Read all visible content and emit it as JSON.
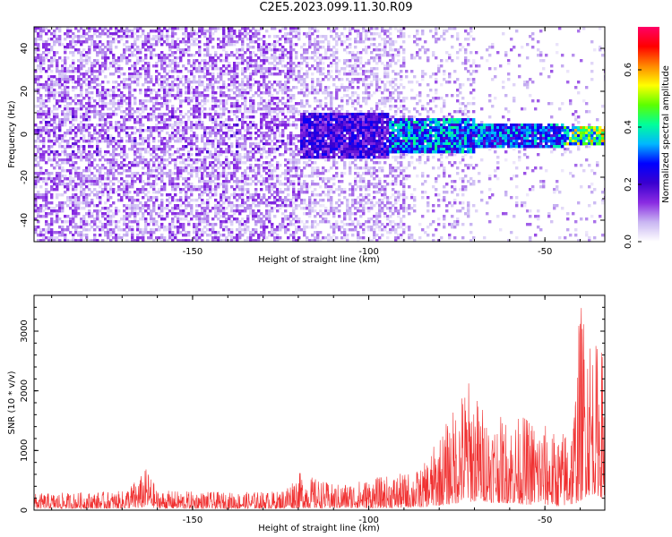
{
  "title": "C2E5.2023.099.11.30.R09",
  "colors": {
    "snr_line": "#f03030",
    "axis": "#000000",
    "background": "#ffffff",
    "colormap": [
      "#ffffff",
      "#c9b6f2",
      "#8a2be2",
      "#3a00d0",
      "#0000ff",
      "#00b7ff",
      "#00ff9a",
      "#5cff00",
      "#ffff00",
      "#ff8800",
      "#ff0000",
      "#ff0066"
    ]
  },
  "chart_data": [
    {
      "type": "heatmap",
      "title": "",
      "xlabel": "Height of straight line (km)",
      "ylabel": "Frequency (Hz)",
      "xlim": [
        -195,
        -33
      ],
      "ylim": [
        -50,
        50
      ],
      "xticks": [
        -150,
        -100,
        -50
      ],
      "yticks": [
        -40,
        -20,
        0,
        20,
        40
      ],
      "colorbar": {
        "label": "Normalized spectral amplitude",
        "range": [
          0,
          0.75
        ],
        "ticks": [
          0.0,
          0.2,
          0.4,
          0.6
        ]
      },
      "regions": [
        {
          "x": [
            -195,
            -120
          ],
          "description_level": "scattered low-to-mid amplitude (≈0.05–0.15) across full frequency band"
        },
        {
          "x": [
            -120,
            -95
          ],
          "freq_band": [
            -10,
            10
          ],
          "level": 0.2
        },
        {
          "x": [
            -95,
            -70
          ],
          "freq_band": [
            -8,
            8
          ],
          "level": 0.32
        },
        {
          "x": [
            -70,
            -45
          ],
          "freq_band": [
            -6,
            6
          ],
          "level": 0.3
        },
        {
          "x": [
            -45,
            -33
          ],
          "freq_band": [
            -4,
            4
          ],
          "level": 0.45
        }
      ]
    },
    {
      "type": "line",
      "title": "",
      "xlabel": "Height of straight line (km)",
      "ylabel": "SNR (10 * v/v)",
      "xlim": [
        -195,
        -33
      ],
      "ylim": [
        0,
        3600
      ],
      "xticks": [
        -150,
        -100,
        -50
      ],
      "yticks": [
        0,
        1000,
        2000,
        3000
      ],
      "envelope": {
        "x": [
          -195,
          -170,
          -165,
          -163,
          -160,
          -140,
          -125,
          -120,
          -110,
          -100,
          -90,
          -85,
          -80,
          -76,
          -72,
          -68,
          -65,
          -60,
          -55,
          -50,
          -46,
          -42,
          -40,
          -38,
          -36,
          -34,
          -33
        ],
        "base": [
          80,
          90,
          100,
          200,
          90,
          80,
          90,
          110,
          100,
          110,
          130,
          150,
          250,
          350,
          450,
          500,
          420,
          380,
          300,
          300,
          200,
          300,
          500,
          800,
          900,
          700,
          400
        ],
        "peak": [
          280,
          320,
          560,
          720,
          330,
          300,
          320,
          640,
          430,
          530,
          620,
          700,
          1250,
          1700,
          2250,
          1800,
          1600,
          1550,
          1600,
          1450,
          1250,
          1600,
          3550,
          3400,
          2800,
          2900,
          2300
        ]
      }
    }
  ]
}
